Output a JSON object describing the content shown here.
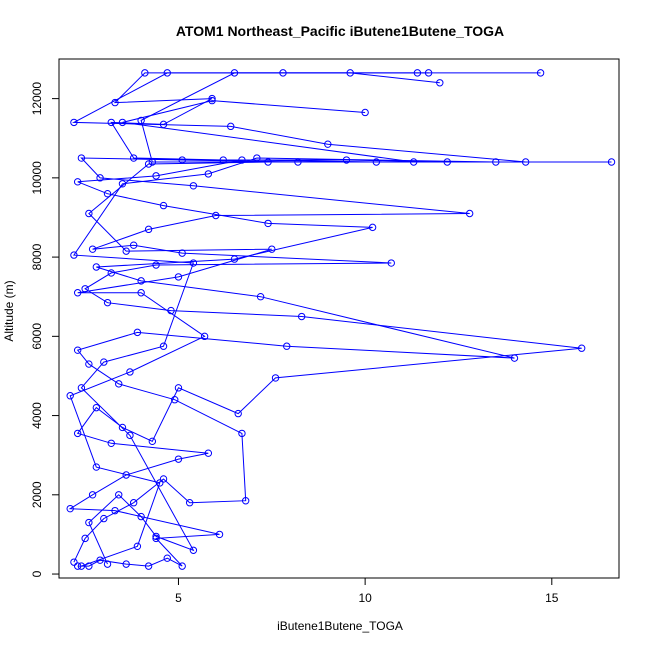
{
  "chart_data": {
    "type": "scatter",
    "title": "ATOM1 Northeast_Pacific iButene1Butene_TOGA",
    "xlabel": "iButene1Butene_TOGA",
    "ylabel": "Altitude (m)",
    "xlim": [
      1.8,
      16.8
    ],
    "ylim": [
      -100,
      13000
    ],
    "x_ticks": [
      5,
      10,
      15
    ],
    "y_ticks": [
      0,
      2000,
      4000,
      6000,
      8000,
      10000,
      12000
    ],
    "connected": true,
    "color": "#0000ff",
    "marker": "open-circle",
    "series": [
      {
        "values": [
          {
            "x": 2.3,
            "y": 200
          },
          {
            "x": 2.6,
            "y": 200
          },
          {
            "x": 2.9,
            "y": 350
          },
          {
            "x": 3.6,
            "y": 250
          },
          {
            "x": 4.2,
            "y": 200
          },
          {
            "x": 4.7,
            "y": 400
          },
          {
            "x": 5.1,
            "y": 200
          },
          {
            "x": 4.4,
            "y": 900
          },
          {
            "x": 6.1,
            "y": 1000
          },
          {
            "x": 3.3,
            "y": 1600
          },
          {
            "x": 2.1,
            "y": 1650
          },
          {
            "x": 2.7,
            "y": 2000
          },
          {
            "x": 3.6,
            "y": 2500
          },
          {
            "x": 5.0,
            "y": 2900
          },
          {
            "x": 5.8,
            "y": 3050
          },
          {
            "x": 3.2,
            "y": 3300
          },
          {
            "x": 2.3,
            "y": 3550
          },
          {
            "x": 2.8,
            "y": 4200
          },
          {
            "x": 3.5,
            "y": 3700
          },
          {
            "x": 4.3,
            "y": 3350
          },
          {
            "x": 5.0,
            "y": 4700
          },
          {
            "x": 6.6,
            "y": 4050
          },
          {
            "x": 7.6,
            "y": 4950
          },
          {
            "x": 15.8,
            "y": 5700
          },
          {
            "x": 8.3,
            "y": 6500
          },
          {
            "x": 4.8,
            "y": 6650
          },
          {
            "x": 3.1,
            "y": 6850
          },
          {
            "x": 2.5,
            "y": 7200
          },
          {
            "x": 3.2,
            "y": 7600
          },
          {
            "x": 4.4,
            "y": 7800
          },
          {
            "x": 10.7,
            "y": 7850
          },
          {
            "x": 5.1,
            "y": 8100
          },
          {
            "x": 3.8,
            "y": 8300
          },
          {
            "x": 2.7,
            "y": 8200
          },
          {
            "x": 4.2,
            "y": 8700
          },
          {
            "x": 6.0,
            "y": 9050
          },
          {
            "x": 12.8,
            "y": 9100
          },
          {
            "x": 5.4,
            "y": 9800
          },
          {
            "x": 2.9,
            "y": 10000
          },
          {
            "x": 2.4,
            "y": 10500
          },
          {
            "x": 5.1,
            "y": 10450
          },
          {
            "x": 8.2,
            "y": 10400
          },
          {
            "x": 16.6,
            "y": 10400
          },
          {
            "x": 12.2,
            "y": 10400
          },
          {
            "x": 9.5,
            "y": 10450
          },
          {
            "x": 6.2,
            "y": 10450
          },
          {
            "x": 3.8,
            "y": 10500
          },
          {
            "x": 3.2,
            "y": 11400
          },
          {
            "x": 4.6,
            "y": 11350
          },
          {
            "x": 5.9,
            "y": 12000
          },
          {
            "x": 3.3,
            "y": 11900
          },
          {
            "x": 4.1,
            "y": 12650
          },
          {
            "x": 7.8,
            "y": 12650
          },
          {
            "x": 11.4,
            "y": 12650
          },
          {
            "x": 14.7,
            "y": 12650
          }
        ]
      },
      {
        "values": [
          {
            "x": 2.2,
            "y": 300
          },
          {
            "x": 2.5,
            "y": 900
          },
          {
            "x": 3.0,
            "y": 1400
          },
          {
            "x": 3.8,
            "y": 1800
          },
          {
            "x": 4.6,
            "y": 2400
          },
          {
            "x": 5.3,
            "y": 1800
          },
          {
            "x": 6.8,
            "y": 1850
          },
          {
            "x": 6.7,
            "y": 3550
          },
          {
            "x": 4.9,
            "y": 4400
          },
          {
            "x": 3.4,
            "y": 4800
          },
          {
            "x": 2.6,
            "y": 5300
          },
          {
            "x": 2.3,
            "y": 5650
          },
          {
            "x": 3.9,
            "y": 6100
          },
          {
            "x": 7.9,
            "y": 5750
          },
          {
            "x": 14.0,
            "y": 5450
          },
          {
            "x": 7.2,
            "y": 7000
          },
          {
            "x": 4.0,
            "y": 7400
          },
          {
            "x": 2.8,
            "y": 7750
          },
          {
            "x": 6.5,
            "y": 7950
          },
          {
            "x": 10.2,
            "y": 8750
          },
          {
            "x": 7.4,
            "y": 8850
          },
          {
            "x": 4.6,
            "y": 9300
          },
          {
            "x": 3.1,
            "y": 9600
          },
          {
            "x": 2.3,
            "y": 9900
          },
          {
            "x": 4.4,
            "y": 10050
          },
          {
            "x": 6.7,
            "y": 10450
          },
          {
            "x": 10.3,
            "y": 10400
          },
          {
            "x": 14.3,
            "y": 10400
          },
          {
            "x": 9.0,
            "y": 10850
          },
          {
            "x": 6.4,
            "y": 11300
          },
          {
            "x": 2.2,
            "y": 11400
          },
          {
            "x": 4.7,
            "y": 12650
          },
          {
            "x": 9.6,
            "y": 12650
          },
          {
            "x": 12.0,
            "y": 12400
          }
        ]
      },
      {
        "values": [
          {
            "x": 3.1,
            "y": 250
          },
          {
            "x": 2.6,
            "y": 1300
          },
          {
            "x": 3.4,
            "y": 2000
          },
          {
            "x": 4.0,
            "y": 1450
          },
          {
            "x": 4.4,
            "y": 950
          },
          {
            "x": 5.4,
            "y": 600
          },
          {
            "x": 3.7,
            "y": 3500
          },
          {
            "x": 2.4,
            "y": 4700
          },
          {
            "x": 3.0,
            "y": 5350
          },
          {
            "x": 4.6,
            "y": 5750
          },
          {
            "x": 5.4,
            "y": 7850
          },
          {
            "x": 2.2,
            "y": 8050
          },
          {
            "x": 3.5,
            "y": 9850
          },
          {
            "x": 5.8,
            "y": 10100
          },
          {
            "x": 7.1,
            "y": 10500
          },
          {
            "x": 13.5,
            "y": 10400
          },
          {
            "x": 4.3,
            "y": 10400
          },
          {
            "x": 4.0,
            "y": 11450
          },
          {
            "x": 6.5,
            "y": 12650
          },
          {
            "x": 11.7,
            "y": 12650
          }
        ]
      },
      {
        "values": [
          {
            "x": 2.4,
            "y": 200
          },
          {
            "x": 3.9,
            "y": 700
          },
          {
            "x": 4.5,
            "y": 2300
          },
          {
            "x": 2.8,
            "y": 2700
          },
          {
            "x": 2.1,
            "y": 4500
          },
          {
            "x": 3.7,
            "y": 5100
          },
          {
            "x": 5.7,
            "y": 6000
          },
          {
            "x": 4.0,
            "y": 7100
          },
          {
            "x": 2.3,
            "y": 7100
          },
          {
            "x": 5.0,
            "y": 7500
          },
          {
            "x": 7.5,
            "y": 8200
          },
          {
            "x": 3.6,
            "y": 8150
          },
          {
            "x": 2.6,
            "y": 9100
          },
          {
            "x": 4.2,
            "y": 10350
          },
          {
            "x": 7.4,
            "y": 10400
          },
          {
            "x": 11.3,
            "y": 10400
          },
          {
            "x": 3.5,
            "y": 11400
          },
          {
            "x": 5.9,
            "y": 11950
          },
          {
            "x": 10.0,
            "y": 11650
          }
        ]
      }
    ]
  }
}
